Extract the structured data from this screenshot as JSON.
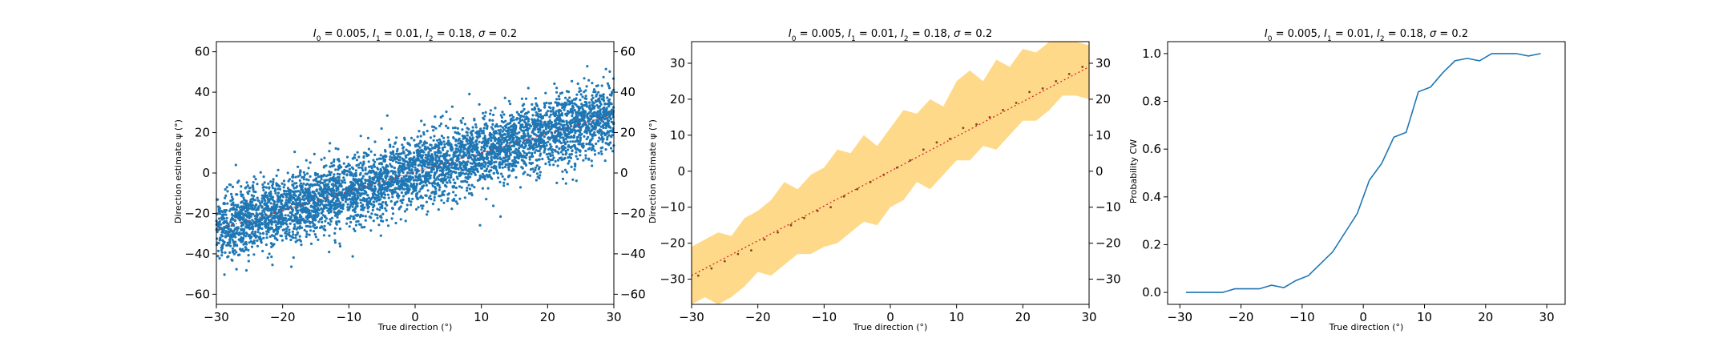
{
  "chart_data": [
    {
      "type": "scatter",
      "title": "I_0 = 0.005, I_1 = 0.01, I_2 = 0.18, σ = 0.2",
      "title_parts": {
        "i0": "0",
        "v0": " = 0.005, ",
        "i1": "1",
        "v1": " = 0.01, ",
        "i2": "2",
        "v2": " = 0.18, ",
        "sigma": "σ",
        "vs": " = 0.2"
      },
      "xlabel": "True direction (°)",
      "ylabel": "Direction estimate ψ (°)",
      "xlim": [
        -30,
        30
      ],
      "ylim": [
        -65,
        65
      ],
      "xticks": [
        -30,
        -20,
        -10,
        0,
        10,
        20,
        30
      ],
      "yticks": [
        -60,
        -40,
        -20,
        0,
        20,
        40,
        60
      ],
      "right_yticks": true,
      "grid": false,
      "point_color": "#1f77b4",
      "trend_color": "#d62728",
      "trend": {
        "x": [
          -30,
          30
        ],
        "y": [
          -28,
          29
        ]
      },
      "approx_points": 5000,
      "noise_sd": 8.5
    },
    {
      "type": "area",
      "title": "I_0 = 0.005, I_1 = 0.01, I_2 = 0.18, σ = 0.2",
      "title_parts": {
        "i0": "0",
        "v0": " = 0.005, ",
        "i1": "1",
        "v1": " = 0.01, ",
        "i2": "2",
        "v2": " = 0.18, ",
        "sigma": "σ",
        "vs": " = 0.2"
      },
      "xlabel": "True direction (°)",
      "ylabel": "Direction estimate ψ (°)",
      "xlim": [
        -30,
        30
      ],
      "ylim": [
        -37,
        36
      ],
      "xticks": [
        -30,
        -20,
        -10,
        0,
        10,
        20,
        30
      ],
      "yticks": [
        -30,
        -20,
        -10,
        0,
        10,
        20,
        30
      ],
      "right_yticks": true,
      "grid": false,
      "band_color": "#ffd98a",
      "point_color": "#7a4a1c",
      "trend_color": "#d62728",
      "x": [
        -30,
        -28,
        -26,
        -24,
        -22,
        -20,
        -18,
        -16,
        -14,
        -12,
        -10,
        -8,
        -6,
        -4,
        -2,
        0,
        2,
        4,
        6,
        8,
        10,
        12,
        14,
        16,
        18,
        20,
        22,
        24,
        26,
        28,
        30
      ],
      "upper": [
        -21,
        -19,
        -17,
        -18,
        -13,
        -11,
        -8,
        -3,
        -5,
        -1,
        1,
        6,
        5,
        10,
        7,
        12,
        17,
        16,
        20,
        18,
        25,
        28,
        25,
        31,
        29,
        34,
        33,
        36,
        36,
        36,
        35
      ],
      "lower": [
        -37,
        -35,
        -37,
        -35,
        -32,
        -28,
        -29,
        -26,
        -23,
        -23,
        -21,
        -20,
        -17,
        -14,
        -15,
        -10,
        -8,
        -3,
        -5,
        -1,
        3,
        3,
        7,
        6,
        10,
        14,
        14,
        17,
        21,
        21,
        20
      ],
      "mean_x": [
        -29,
        -27,
        -25,
        -23,
        -21,
        -19,
        -17,
        -15,
        -13,
        -11,
        -9,
        -7,
        -5,
        -3,
        -1,
        1,
        3,
        5,
        7,
        9,
        11,
        13,
        15,
        17,
        19,
        21,
        23,
        25,
        27,
        29
      ],
      "mean_y": [
        -29,
        -27,
        -25,
        -23,
        -22,
        -19,
        -17,
        -15,
        -13,
        -11,
        -10,
        -7,
        -5,
        -3,
        -1,
        1,
        3,
        6,
        8,
        9,
        12,
        13,
        15,
        17,
        19,
        22,
        23,
        25,
        27,
        29
      ],
      "trend": {
        "x": [
          -30,
          30
        ],
        "y": [
          -29,
          29
        ]
      }
    },
    {
      "type": "line",
      "title": "I_0 = 0.005, I_1 = 0.01, I_2 = 0.18, σ = 0.2",
      "title_parts": {
        "i0": "0",
        "v0": " = 0.005, ",
        "i1": "1",
        "v1": " = 0.01, ",
        "i2": "2",
        "v2": " = 0.18, ",
        "sigma": "σ",
        "vs": " = 0.2"
      },
      "xlabel": "True direction (°)",
      "ylabel": "Probability CW",
      "xlim": [
        -32,
        33
      ],
      "ylim": [
        -0.05,
        1.05
      ],
      "xticks": [
        -30,
        -20,
        -10,
        0,
        10,
        20,
        30
      ],
      "yticks": [
        0.0,
        0.2,
        0.4,
        0.6,
        0.8,
        1.0
      ],
      "ytick_labels": [
        "0.0",
        "0.2",
        "0.4",
        "0.6",
        "0.8",
        "1.0"
      ],
      "right_yticks": false,
      "grid": false,
      "line_color": "#1f77b4",
      "x": [
        -29,
        -27,
        -25,
        -23,
        -21,
        -19,
        -17,
        -15,
        -13,
        -11,
        -9,
        -7,
        -5,
        -3,
        -1,
        1,
        3,
        5,
        7,
        9,
        11,
        13,
        15,
        17,
        19,
        21,
        23,
        25,
        27,
        29
      ],
      "y": [
        0.0,
        0.0,
        0.0,
        0.0,
        0.015,
        0.015,
        0.015,
        0.03,
        0.02,
        0.05,
        0.07,
        0.12,
        0.17,
        0.25,
        0.33,
        0.47,
        0.54,
        0.65,
        0.67,
        0.84,
        0.86,
        0.92,
        0.97,
        0.98,
        0.97,
        1.0,
        1.0,
        1.0,
        0.99,
        1.0
      ]
    }
  ]
}
